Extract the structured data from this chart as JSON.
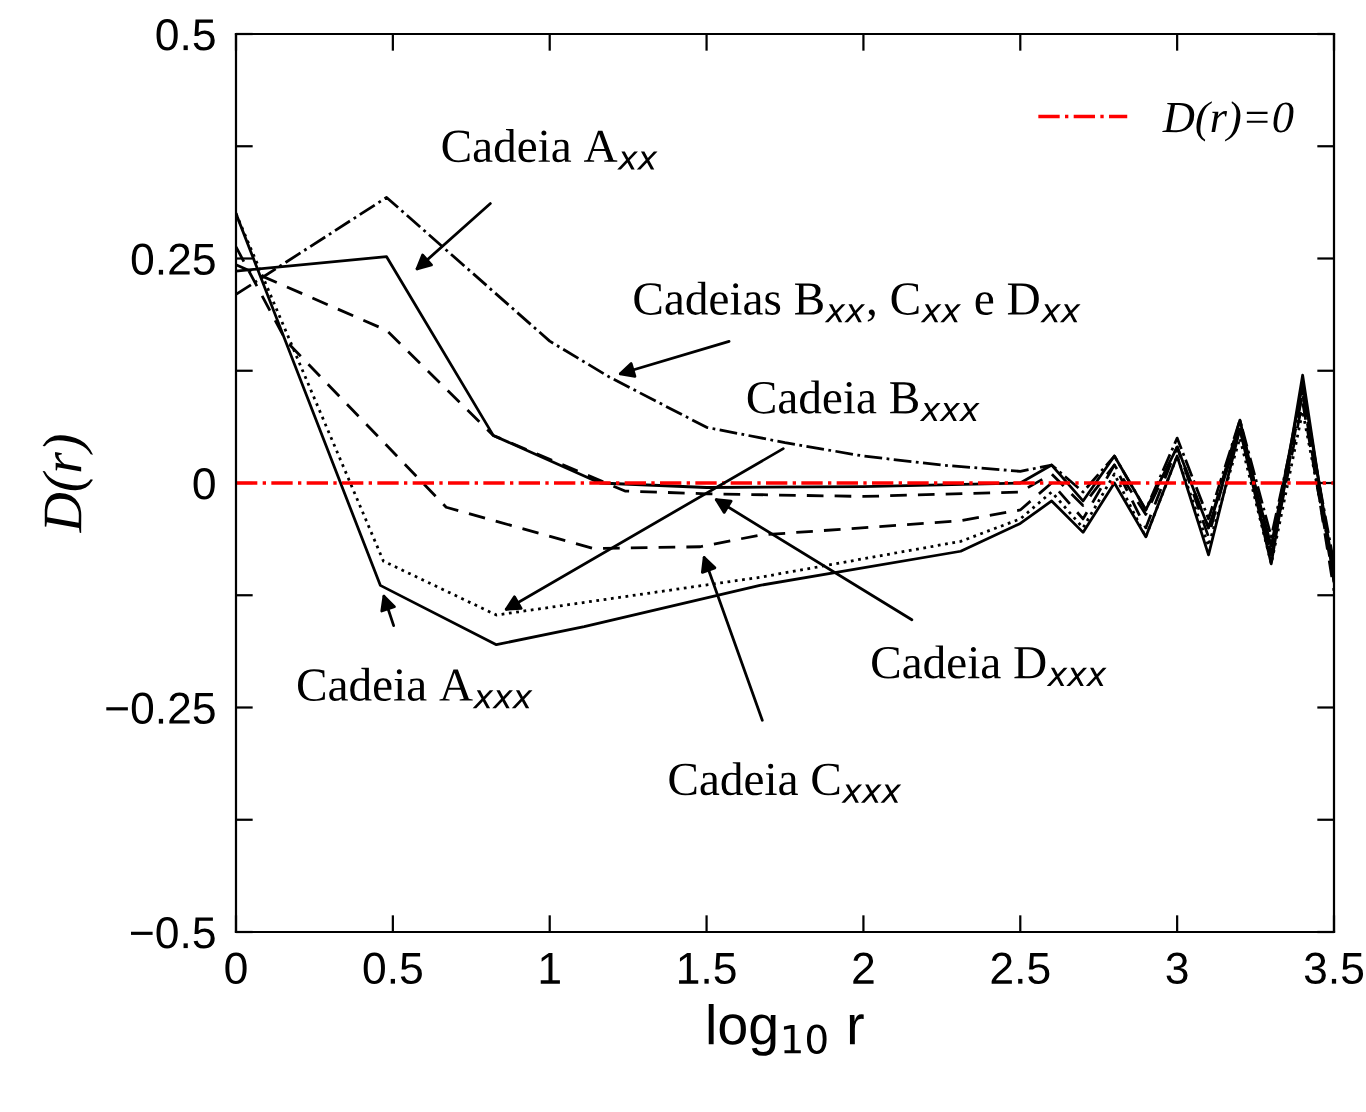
{
  "chart_data": {
    "type": "line",
    "xlabel": "log$_{10}$ r",
    "ylabel": "D(r)",
    "xlim": [
      0,
      3.5
    ],
    "ylim": [
      -0.5,
      0.5
    ],
    "xticks": [
      0,
      0.5,
      1,
      1.5,
      2,
      2.5,
      3,
      3.5
    ],
    "yticks": [
      {
        "value": -0.5,
        "label": "−0.5"
      },
      {
        "value": -0.375,
        "label": null
      },
      {
        "value": -0.25,
        "label": "−0.25"
      },
      {
        "value": -0.125,
        "label": null
      },
      0,
      {
        "value": 0.125,
        "label": null
      },
      0.25,
      {
        "value": 0.375,
        "label": null
      },
      0.5
    ],
    "grid": false,
    "legend": "top right",
    "series": [
      {
        "color": "#000000",
        "line_style": "dashdot",
        "x": [
          0,
          0.48,
          1.0,
          1.19,
          1.5,
          1.75,
          2.0,
          2.25,
          2.5,
          2.6,
          2.7,
          2.8,
          2.9,
          3.0,
          3.1,
          3.2,
          3.3,
          3.4,
          3.5
        ],
        "values": [
          0.21,
          0.318,
          0.158,
          0.118,
          0.062,
          0.045,
          0.03,
          0.02,
          0.013,
          0.02,
          -0.01,
          0.03,
          -0.03,
          0.05,
          -0.04,
          0.07,
          -0.06,
          0.1,
          -0.09
        ]
      },
      {
        "color": "#000000",
        "line_style": "solid",
        "x": [
          0,
          0.48,
          0.82,
          1.16,
          1.5,
          2.0,
          2.5,
          2.6,
          2.7,
          2.8,
          2.9,
          3.0,
          3.1,
          3.2,
          3.3,
          3.4,
          3.5
        ],
        "values": [
          0.236,
          0.252,
          0.053,
          0.0,
          -0.005,
          -0.004,
          0.0,
          0.02,
          -0.02,
          0.03,
          -0.03,
          0.04,
          -0.05,
          0.06,
          -0.07,
          0.11,
          -0.1
        ]
      },
      {
        "color": "#000000",
        "line_style": "dashed",
        "x": [
          0,
          0.48,
          0.82,
          1.24,
          1.5,
          2.0,
          2.5,
          2.6,
          2.7,
          2.8,
          2.9,
          3.0,
          3.1,
          3.2,
          3.3,
          3.4,
          3.5
        ],
        "values": [
          0.243,
          0.17,
          0.053,
          -0.009,
          -0.012,
          -0.015,
          -0.01,
          0.01,
          -0.025,
          0.02,
          -0.035,
          0.04,
          -0.05,
          0.07,
          -0.08,
          0.09,
          -0.11
        ]
      },
      {
        "color": "#000000",
        "line_style": "dashed",
        "x": [
          0,
          0.16,
          0.48,
          0.67,
          1.14,
          1.48,
          1.67,
          2.31,
          2.5,
          2.6,
          2.7,
          2.8,
          2.9,
          3.0,
          3.1,
          3.2,
          3.3,
          3.4,
          3.5
        ],
        "values": [
          0.263,
          0.158,
          0.042,
          -0.027,
          -0.073,
          -0.071,
          -0.058,
          -0.042,
          -0.03,
          0.0,
          -0.04,
          0.02,
          -0.05,
          0.04,
          -0.06,
          0.07,
          -0.08,
          0.1,
          -0.12
        ]
      },
      {
        "color": "#000000",
        "line_style": "dotted",
        "x": [
          0,
          0.47,
          0.83,
          1.67,
          2.31,
          2.5,
          2.6,
          2.7,
          2.8,
          2.9,
          3.0,
          3.1,
          3.2,
          3.3,
          3.4,
          3.5
        ],
        "values": [
          0.3,
          -0.087,
          -0.147,
          -0.105,
          -0.065,
          -0.04,
          -0.01,
          -0.05,
          0.01,
          -0.06,
          0.03,
          -0.07,
          0.05,
          -0.09,
          0.08,
          -0.1
        ]
      },
      {
        "color": "#000000",
        "line_style": "solid",
        "x": [
          0,
          0.46,
          0.83,
          1.11,
          1.67,
          2.31,
          2.5,
          2.6,
          2.7,
          2.8,
          2.9,
          3.0,
          3.1,
          3.2,
          3.3,
          3.4,
          3.5
        ],
        "values": [
          0.3,
          -0.114,
          -0.18,
          -0.16,
          -0.114,
          -0.076,
          -0.045,
          -0.02,
          -0.055,
          0.0,
          -0.06,
          0.03,
          -0.08,
          0.06,
          -0.09,
          0.12,
          -0.11
        ]
      }
    ],
    "ref_lines": [
      {
        "axis": "y",
        "value": 0,
        "label": "D(r)=0",
        "color": "#ff0000",
        "line_style": "dashdot"
      }
    ],
    "annotations": [
      {
        "text": "Cadeia A$_{xx}$",
        "x": 0.55,
        "y": 0.23
      },
      {
        "text": "Cadeias B$_{xx}$, C$_{xx}$ e D$_{xx}$",
        "x": 1.19,
        "y": 0.118
      },
      {
        "text": "Cadeia B$_{xxx}$",
        "x": 0.83,
        "y": -0.147
      },
      {
        "text": "Cadeia D$_{xxx}$",
        "x": 1.5,
        "y": -0.012
      },
      {
        "text": "Cadeia C$_{xxx}$",
        "x": 1.48,
        "y": -0.071
      },
      {
        "text": "Cadeia A$_{xxx}$",
        "x": 0.46,
        "y": -0.114
      }
    ]
  }
}
